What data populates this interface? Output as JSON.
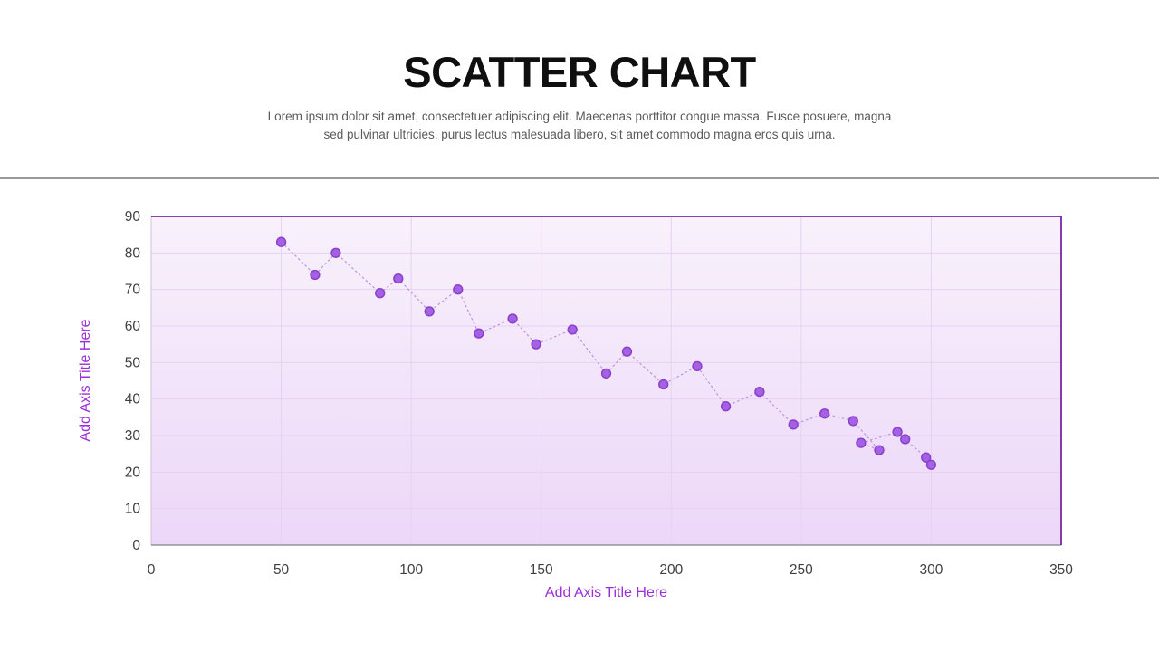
{
  "slide": {
    "title": "SCATTER CHART",
    "subtitle_lines": [
      "Lorem ipsum dolor sit amet, consectetuer adipiscing elit. Maecenas porttitor congue massa. Fusce posuere, magna",
      "sed pulvinar ultricies, purus lectus malesuada libero, sit amet commodo magna eros quis urna."
    ]
  },
  "chart_data": {
    "type": "scatter",
    "title": "SCATTER CHART",
    "x_axis_title": "Add Axis Title Here",
    "y_axis_title": "Add Axis Title Here",
    "xlim": [
      0,
      350
    ],
    "ylim": [
      0,
      90
    ],
    "x_ticks": [
      0,
      50,
      100,
      150,
      200,
      250,
      300,
      350
    ],
    "y_ticks": [
      0,
      10,
      20,
      30,
      40,
      50,
      60,
      70,
      80,
      90
    ],
    "grid": true,
    "legend": "none",
    "marker": "circle",
    "line_style": "dotted",
    "points": [
      [
        50,
        83
      ],
      [
        63,
        74
      ],
      [
        71,
        80
      ],
      [
        88,
        69
      ],
      [
        95,
        73
      ],
      [
        107,
        64
      ],
      [
        118,
        70
      ],
      [
        126,
        58
      ],
      [
        139,
        62
      ],
      [
        148,
        55
      ],
      [
        162,
        59
      ],
      [
        175,
        47
      ],
      [
        183,
        53
      ],
      [
        197,
        44
      ],
      [
        210,
        49
      ],
      [
        221,
        38
      ],
      [
        234,
        42
      ],
      [
        247,
        33
      ],
      [
        259,
        36
      ],
      [
        270,
        34
      ],
      [
        280,
        26
      ],
      [
        273,
        28
      ],
      [
        287,
        31
      ],
      [
        290,
        29
      ],
      [
        298,
        24
      ],
      [
        300,
        22
      ]
    ],
    "colors": {
      "marker_fill": "#a660e4",
      "marker_stroke": "#8742cb",
      "line": "#bc93e3",
      "grid": "#e6d2f1",
      "plot_bg_top": "#f8f1fb",
      "plot_bg_bottom": "#ecd7f8",
      "border_top_right": "#7a26a3",
      "x_axis_line": "#97949e",
      "y_axis_line": "#cbc3d4",
      "tick_label": "#3f3f3f",
      "axis_title": "#9c2fd9",
      "divider": "#999999"
    }
  }
}
